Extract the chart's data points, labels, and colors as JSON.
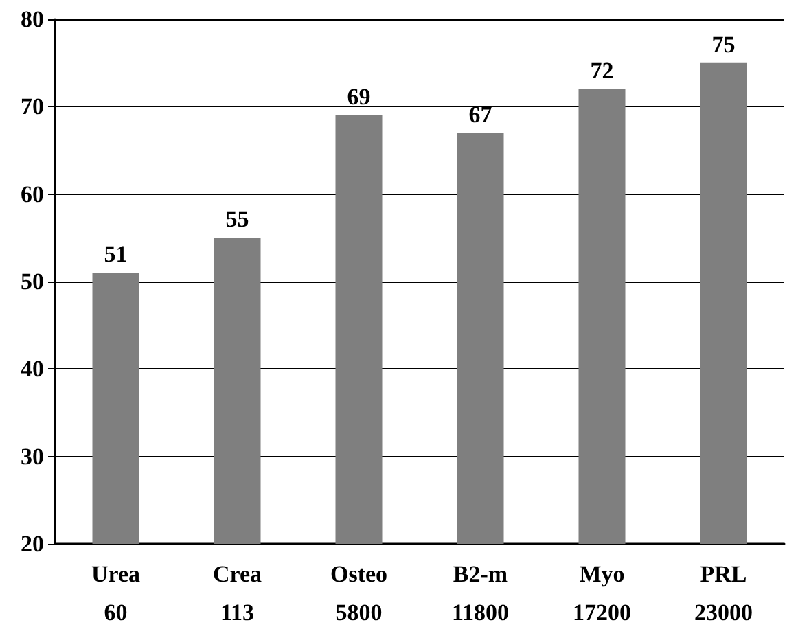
{
  "chart_data": {
    "type": "bar",
    "categories": [
      "Urea\n60",
      "Crea\n113",
      "Osteo\n5800",
      "B2-m\n11800",
      "Myo\n17200",
      "PRL\n23000"
    ],
    "values": [
      51,
      55,
      69,
      67,
      72,
      75
    ],
    "color": "#7f7f7f",
    "ylim": [
      20,
      80
    ],
    "yticks": [
      20,
      30,
      40,
      50,
      60,
      70,
      80
    ],
    "grid": "y",
    "data_labels": true
  }
}
